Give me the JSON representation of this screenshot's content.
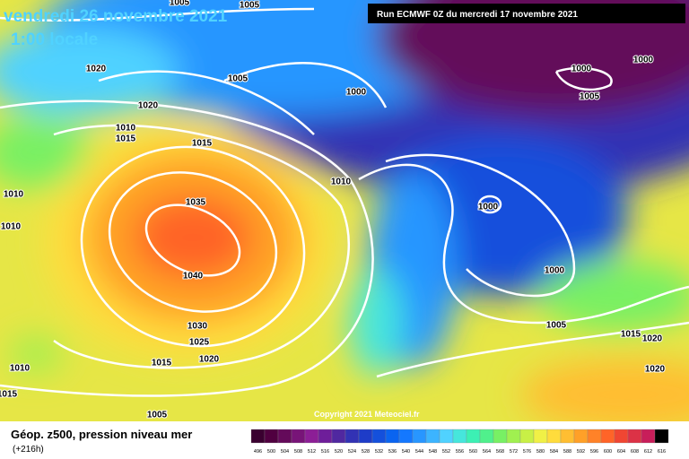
{
  "header": {
    "date": "vendredi 26 novembre 2021",
    "time": "1:00 locale",
    "run": "Run ECMWF 0Z du mercredi 17 novembre 2021",
    "copyright": "Copyright 2021 Meteociel.fr"
  },
  "footer": {
    "title": "Géop. z500, pression niveau mer",
    "lead": "(+216h)"
  },
  "isobar_labels": [
    "1005",
    "1005",
    "1020",
    "1005",
    "1000",
    "1020",
    "1010",
    "1015",
    "1015",
    "1010",
    "1035",
    "1040",
    "1030",
    "1025",
    "1020",
    "1015",
    "1010",
    "1010",
    "1010",
    "1015",
    "1005",
    "1000",
    "1000",
    "1005",
    "1000",
    "1000",
    "1005",
    "1015",
    "1020",
    "1020"
  ],
  "legend": {
    "labels": [
      "496",
      "500",
      "504",
      "508",
      "512",
      "516",
      "520",
      "524",
      "528",
      "532",
      "536",
      "540",
      "544",
      "548",
      "552",
      "556",
      "560",
      "564",
      "568",
      "572",
      "576",
      "580",
      "584",
      "588",
      "592",
      "596",
      "600",
      "604",
      "608",
      "612",
      "616"
    ],
    "colors": [
      "#3a0030",
      "#500040",
      "#640a5a",
      "#781478",
      "#8c1e96",
      "#6e1e9a",
      "#5028a0",
      "#3232b4",
      "#1e3cc8",
      "#1450dc",
      "#0a64f0",
      "#1478ff",
      "#2896ff",
      "#3cb4ff",
      "#50d2ff",
      "#46e6dc",
      "#3cf0b4",
      "#50f08c",
      "#78f064",
      "#a0f050",
      "#c8f046",
      "#f0f046",
      "#ffdc3c",
      "#ffbe32",
      "#ffa028",
      "#ff8228",
      "#ff6428",
      "#f04632",
      "#dc3246",
      "#c81e5a",
      "#000000"
    ]
  }
}
